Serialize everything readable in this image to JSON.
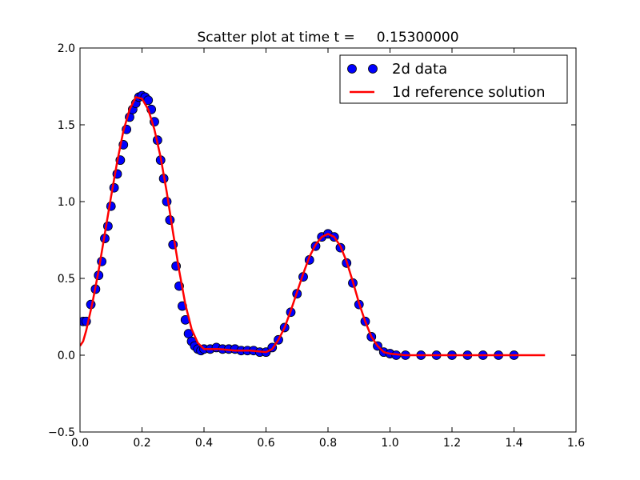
{
  "chart_data": {
    "type": "scatter",
    "title": "Scatter plot at time t =     0.15300000",
    "xlabel": "",
    "ylabel": "",
    "xlim": [
      0.0,
      1.6
    ],
    "ylim": [
      -0.5,
      2.0
    ],
    "x_ticks": [
      "0.0",
      "0.2",
      "0.4",
      "0.6",
      "0.8",
      "1.0",
      "1.2",
      "1.4",
      "1.6"
    ],
    "y_ticks": [
      "−0.5",
      "0.0",
      "0.5",
      "1.0",
      "1.5",
      "2.0"
    ],
    "legend_placement": "top-right",
    "grid": false,
    "series": [
      {
        "name": "2d data",
        "kind": "scatter",
        "color": "#0000ff",
        "edge_color": "#000000",
        "x": [
          0.01,
          0.02,
          0.035,
          0.05,
          0.06,
          0.07,
          0.08,
          0.09,
          0.1,
          0.11,
          0.12,
          0.13,
          0.14,
          0.15,
          0.16,
          0.17,
          0.18,
          0.19,
          0.2,
          0.21,
          0.22,
          0.23,
          0.24,
          0.25,
          0.26,
          0.27,
          0.28,
          0.29,
          0.3,
          0.31,
          0.32,
          0.33,
          0.34,
          0.35,
          0.36,
          0.37,
          0.38,
          0.39,
          0.4,
          0.42,
          0.44,
          0.46,
          0.48,
          0.5,
          0.52,
          0.54,
          0.56,
          0.58,
          0.6,
          0.62,
          0.64,
          0.66,
          0.68,
          0.7,
          0.72,
          0.74,
          0.76,
          0.78,
          0.8,
          0.82,
          0.84,
          0.86,
          0.88,
          0.9,
          0.92,
          0.94,
          0.96,
          0.98,
          1.0,
          1.02,
          1.05,
          1.1,
          1.15,
          1.2,
          1.25,
          1.3,
          1.35,
          1.4
        ],
        "y": [
          0.22,
          0.22,
          0.33,
          0.43,
          0.52,
          0.61,
          0.76,
          0.84,
          0.97,
          1.09,
          1.18,
          1.27,
          1.37,
          1.47,
          1.55,
          1.6,
          1.64,
          1.68,
          1.69,
          1.68,
          1.66,
          1.6,
          1.52,
          1.4,
          1.27,
          1.15,
          1.0,
          0.88,
          0.72,
          0.58,
          0.45,
          0.32,
          0.23,
          0.14,
          0.09,
          0.06,
          0.04,
          0.03,
          0.04,
          0.04,
          0.05,
          0.04,
          0.04,
          0.04,
          0.03,
          0.03,
          0.03,
          0.02,
          0.02,
          0.05,
          0.1,
          0.18,
          0.28,
          0.4,
          0.51,
          0.62,
          0.71,
          0.77,
          0.79,
          0.77,
          0.7,
          0.6,
          0.47,
          0.33,
          0.22,
          0.12,
          0.06,
          0.02,
          0.01,
          0.0,
          0.0,
          0.0,
          0.0,
          0.0,
          0.0,
          0.0,
          0.0,
          0.0
        ]
      },
      {
        "name": "1d reference solution",
        "kind": "line",
        "color": "#ff0000",
        "x": [
          0.0,
          0.01,
          0.02,
          0.04,
          0.06,
          0.08,
          0.1,
          0.12,
          0.14,
          0.16,
          0.18,
          0.2,
          0.22,
          0.24,
          0.26,
          0.28,
          0.3,
          0.32,
          0.34,
          0.36,
          0.38,
          0.4,
          0.45,
          0.5,
          0.55,
          0.6,
          0.62,
          0.64,
          0.66,
          0.68,
          0.7,
          0.72,
          0.74,
          0.76,
          0.78,
          0.8,
          0.82,
          0.84,
          0.86,
          0.88,
          0.9,
          0.92,
          0.94,
          0.96,
          0.98,
          1.0,
          1.05,
          1.1,
          1.2,
          1.3,
          1.4,
          1.5
        ],
        "y": [
          0.06,
          0.09,
          0.16,
          0.34,
          0.55,
          0.79,
          1.03,
          1.26,
          1.46,
          1.6,
          1.68,
          1.67,
          1.6,
          1.47,
          1.29,
          1.06,
          0.8,
          0.55,
          0.33,
          0.17,
          0.08,
          0.04,
          0.04,
          0.03,
          0.03,
          0.02,
          0.04,
          0.1,
          0.18,
          0.29,
          0.41,
          0.53,
          0.64,
          0.72,
          0.77,
          0.79,
          0.77,
          0.71,
          0.61,
          0.48,
          0.34,
          0.22,
          0.12,
          0.06,
          0.02,
          0.01,
          0.0,
          0.0,
          0.0,
          0.0,
          0.0,
          0.0
        ]
      }
    ]
  }
}
